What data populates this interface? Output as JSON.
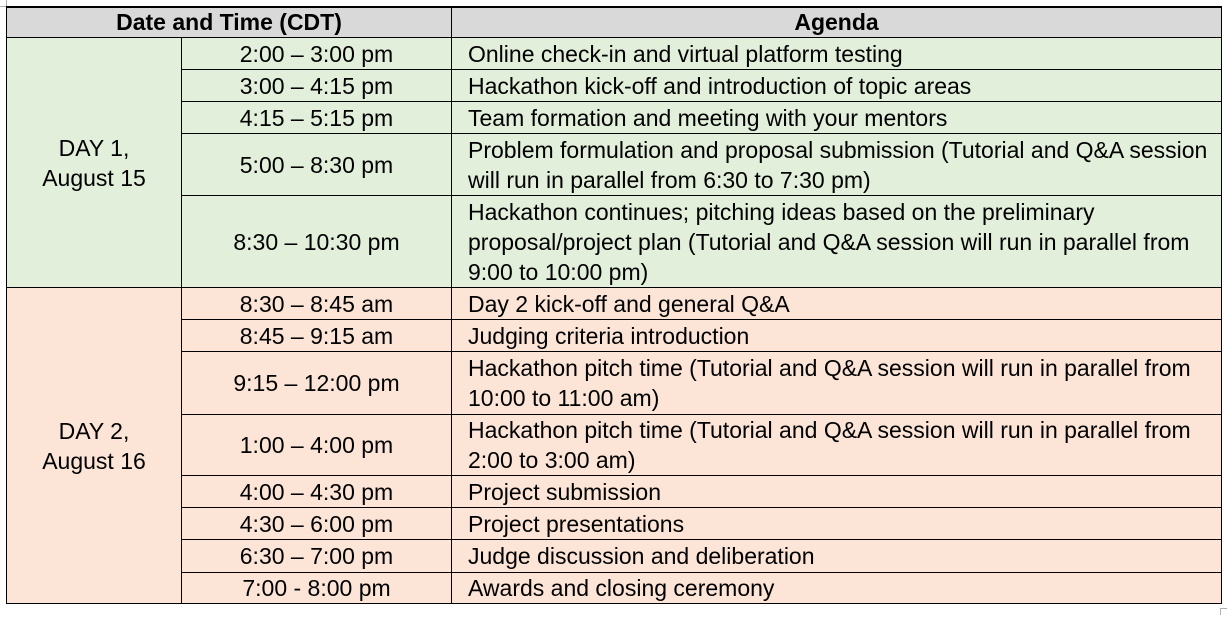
{
  "headers": {
    "date_time": "Date and Time (CDT)",
    "agenda": "Agenda"
  },
  "days": [
    {
      "label_line1": "DAY 1,",
      "label_line2": "August 15",
      "color": "#e2efda",
      "rows": [
        {
          "time": "2:00 – 3:00 pm",
          "agenda": "Online check-in and virtual platform testing"
        },
        {
          "time": "3:00 – 4:15 pm",
          "agenda": "Hackathon kick-off and introduction of topic areas"
        },
        {
          "time": "4:15 – 5:15 pm",
          "agenda": "Team formation and meeting with your mentors"
        },
        {
          "time": "5:00 – 8:30 pm",
          "agenda": "Problem formulation and proposal submission (Tutorial and Q&A session will run in parallel from 6:30 to 7:30 pm)"
        },
        {
          "time": "8:30 – 10:30 pm",
          "agenda": "Hackathon continues; pitching ideas based on the preliminary proposal/project plan (Tutorial and Q&A session will run in parallel from 9:00 to 10:00 pm)"
        }
      ]
    },
    {
      "label_line1": "DAY 2,",
      "label_line2": "August 16",
      "color": "#fce4d6",
      "rows": [
        {
          "time": "8:30 – 8:45 am",
          "agenda": "Day 2 kick-off and general Q&A"
        },
        {
          "time": "8:45 – 9:15 am",
          "agenda": "Judging criteria introduction"
        },
        {
          "time": "9:15 – 12:00 pm",
          "agenda": "Hackathon pitch time (Tutorial and Q&A session will run in parallel from 10:00 to 11:00 am)"
        },
        {
          "time": "1:00 – 4:00 pm",
          "agenda": "Hackathon pitch time (Tutorial and Q&A session will run in parallel from 2:00 to 3:00 am)"
        },
        {
          "time": "4:00 – 4:30 pm",
          "agenda": "Project submission"
        },
        {
          "time": "4:30 – 6:00 pm",
          "agenda": "Project presentations"
        },
        {
          "time": "6:30 – 7:00 pm",
          "agenda": "Judge discussion and deliberation"
        },
        {
          "time": "7:00 - 8:00 pm",
          "agenda": "Awards and closing ceremony"
        }
      ]
    }
  ]
}
